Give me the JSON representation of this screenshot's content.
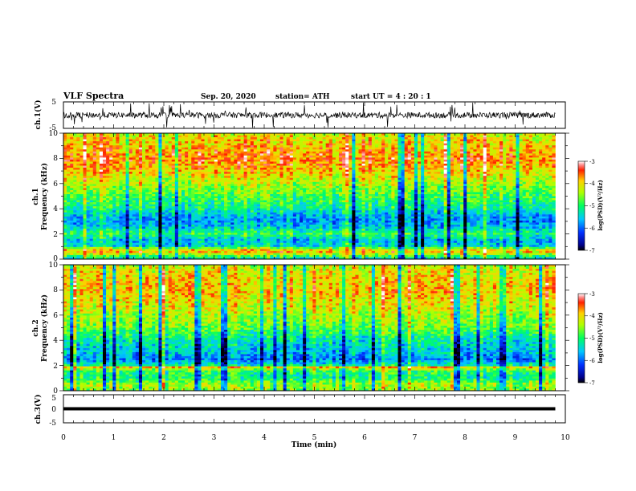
{
  "header": {
    "title": "VLF Spectra",
    "date": "Sep. 20, 2020",
    "station": "station= ATH",
    "start": "start  UT  =   4 : 20 : 1"
  },
  "chart_data": [
    {
      "type": "line",
      "name": "ch.1 waveform",
      "ylabel": "ch.1(V)",
      "ylim": [
        -5,
        5
      ],
      "yticks": [
        "5",
        "-5"
      ],
      "xlim": [
        0,
        10
      ],
      "description_values": "noisy signal around 0 V, amplitude up to about ±5 V",
      "x": [
        0,
        9.8
      ],
      "grid": false
    },
    {
      "type": "heatmap",
      "name": "ch.1 spectrogram",
      "ylabel": "ch.1 Frequency (kHz)",
      "ylabel_lines": [
        "ch.1",
        "Frequency  (kHz)"
      ],
      "ylim": [
        0,
        10
      ],
      "yticks": [
        "0",
        "2",
        "4",
        "6",
        "8",
        "10"
      ],
      "xlim": [
        0,
        10
      ],
      "data_end_min": 9.8,
      "colorbar": {
        "label": "log(PSD)(V²/Hz)",
        "range": [
          -7,
          -3
        ],
        "ticks": [
          "-3",
          "-4",
          "-5",
          "-6",
          "-7"
        ]
      },
      "levels_by_freq_kHz": [
        [
          0,
          -5.5
        ],
        [
          0.6,
          -3.8
        ],
        [
          0.8,
          -4.2
        ],
        [
          1.0,
          -5.4
        ],
        [
          1.5,
          -5.6
        ],
        [
          2.0,
          -4.9
        ],
        [
          2.5,
          -5.5
        ],
        [
          3.0,
          -5.8
        ],
        [
          3.5,
          -5.6
        ],
        [
          4.0,
          -5.2
        ],
        [
          5.0,
          -4.8
        ],
        [
          6.0,
          -4.4
        ],
        [
          7.0,
          -3.9
        ],
        [
          8.0,
          -3.6
        ],
        [
          9.0,
          -3.9
        ],
        [
          10.0,
          -4.2
        ]
      ]
    },
    {
      "type": "heatmap",
      "name": "ch.2 spectrogram",
      "ylabel": "ch.2 Frequency (kHz)",
      "ylabel_lines": [
        "ch.2",
        "Frequency  (kHz)"
      ],
      "ylim": [
        0,
        10
      ],
      "yticks": [
        "0",
        "2",
        "4",
        "6",
        "8",
        "10"
      ],
      "xlim": [
        0,
        10
      ],
      "data_end_min": 9.8,
      "colorbar": {
        "label": "log(PSD)(V²/Hz)",
        "range": [
          -7,
          -3
        ],
        "ticks": [
          "-3",
          "-4",
          "-5",
          "-6",
          "-7"
        ]
      },
      "levels_by_freq_kHz": [
        [
          0,
          -4.6
        ],
        [
          0.5,
          -4.4
        ],
        [
          1.0,
          -5.1
        ],
        [
          1.5,
          -5.0
        ],
        [
          1.9,
          -3.8
        ],
        [
          2.0,
          -5.2
        ],
        [
          2.5,
          -5.9
        ],
        [
          3.0,
          -5.6
        ],
        [
          4.0,
          -5.3
        ],
        [
          5.0,
          -4.7
        ],
        [
          6.0,
          -4.4
        ],
        [
          7.0,
          -4.1
        ],
        [
          8.0,
          -3.9
        ],
        [
          9.0,
          -4.0
        ],
        [
          10.0,
          -4.3
        ]
      ]
    },
    {
      "type": "line",
      "name": "ch.3 waveform",
      "ylabel": "ch.3(V)",
      "ylim": [
        -5,
        5
      ],
      "yticks": [
        "5",
        "0",
        "-5"
      ],
      "xlim": [
        0,
        10
      ],
      "x": [
        0,
        9.8
      ],
      "y": [
        0,
        0
      ],
      "xlabel": "Time  (min)",
      "xticks": [
        "0",
        "1",
        "2",
        "3",
        "4",
        "5",
        "6",
        "7",
        "8",
        "9",
        "10"
      ]
    }
  ]
}
